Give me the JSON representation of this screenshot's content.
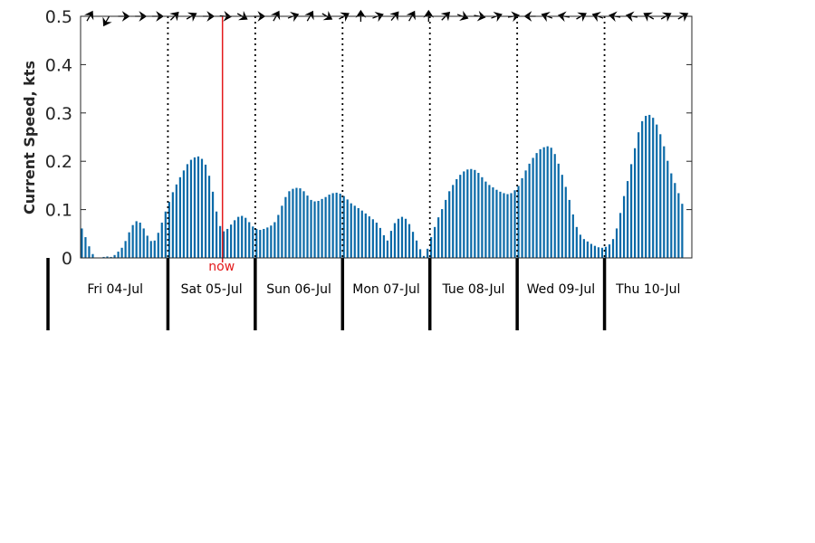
{
  "chart_data": {
    "type": "bar",
    "title": "",
    "xlabel": "",
    "ylabel": "Current Speed, kts",
    "ylim": [
      0,
      0.5
    ],
    "yticks": [
      "0",
      "0.1",
      "0.2",
      "0.3",
      "0.4",
      "0.5"
    ],
    "ytick_values": [
      0,
      0.1,
      0.2,
      0.3,
      0.4,
      0.5
    ],
    "days": [
      "Fri 04-Jul",
      "Sat 05-Jul",
      "Sun 06-Jul",
      "Mon 07-Jul",
      "Tue 08-Jul",
      "Wed 09-Jul",
      "Thu 10-Jul"
    ],
    "now_label": "now",
    "now_hour": 39,
    "bar_interval_hours": 1,
    "hours_span": 168,
    "colors": {
      "bar": "#0b6aa8",
      "now": "#e31a1c",
      "axis": "#262626",
      "separator": "#000000"
    },
    "grid": false,
    "values": [
      0.061,
      0.043,
      0.024,
      0.008,
      0.0,
      0.0,
      0.002,
      0.003,
      0.002,
      0.006,
      0.013,
      0.021,
      0.035,
      0.053,
      0.068,
      0.076,
      0.073,
      0.061,
      0.046,
      0.035,
      0.036,
      0.052,
      0.073,
      0.096,
      0.116,
      0.136,
      0.152,
      0.167,
      0.181,
      0.194,
      0.203,
      0.208,
      0.21,
      0.205,
      0.193,
      0.17,
      0.137,
      0.096,
      0.066,
      0.055,
      0.06,
      0.069,
      0.078,
      0.085,
      0.087,
      0.083,
      0.074,
      0.065,
      0.06,
      0.058,
      0.06,
      0.063,
      0.067,
      0.074,
      0.089,
      0.108,
      0.126,
      0.138,
      0.143,
      0.145,
      0.144,
      0.138,
      0.129,
      0.12,
      0.117,
      0.118,
      0.122,
      0.126,
      0.131,
      0.134,
      0.135,
      0.133,
      0.128,
      0.121,
      0.113,
      0.108,
      0.103,
      0.098,
      0.092,
      0.086,
      0.08,
      0.073,
      0.062,
      0.047,
      0.036,
      0.056,
      0.072,
      0.081,
      0.085,
      0.081,
      0.07,
      0.054,
      0.036,
      0.018,
      0.004,
      0.019,
      0.043,
      0.064,
      0.084,
      0.101,
      0.12,
      0.138,
      0.151,
      0.163,
      0.172,
      0.179,
      0.183,
      0.184,
      0.182,
      0.176,
      0.167,
      0.158,
      0.151,
      0.146,
      0.141,
      0.137,
      0.134,
      0.132,
      0.134,
      0.14,
      0.149,
      0.165,
      0.181,
      0.195,
      0.207,
      0.217,
      0.225,
      0.229,
      0.231,
      0.228,
      0.215,
      0.195,
      0.172,
      0.147,
      0.12,
      0.09,
      0.064,
      0.048,
      0.039,
      0.034,
      0.029,
      0.025,
      0.022,
      0.021,
      0.023,
      0.028,
      0.039,
      0.061,
      0.093,
      0.128,
      0.159,
      0.194,
      0.227,
      0.26,
      0.283,
      0.294,
      0.296,
      0.29,
      0.276,
      0.256,
      0.231,
      0.201,
      0.175,
      0.155,
      0.134,
      0.112
    ]
  }
}
